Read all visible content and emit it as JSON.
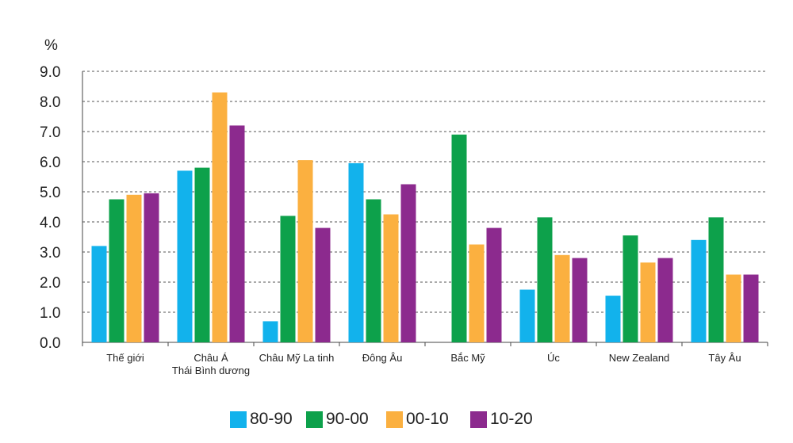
{
  "chart_data": {
    "type": "bar",
    "ylabel": "%",
    "ylim": [
      0,
      9
    ],
    "yticks": [
      "0.0",
      "1.0",
      "2.0",
      "3.0",
      "4.0",
      "5.0",
      "6.0",
      "7.0",
      "8.0",
      "9.0"
    ],
    "grid": "horizontal-dashed",
    "legend_position": "bottom",
    "categories": [
      [
        "Thế giới"
      ],
      [
        "Châu Á",
        "Thái Bình dương"
      ],
      [
        "Châu Mỹ La tinh"
      ],
      [
        "Đông Âu"
      ],
      [
        "Bắc Mỹ"
      ],
      [
        "Úc"
      ],
      [
        "New Zealand"
      ],
      [
        "Tây Âu"
      ]
    ],
    "series": [
      {
        "name": "80-90",
        "color": "#12b2ec",
        "values": [
          3.2,
          5.7,
          0.7,
          5.95,
          null,
          1.75,
          1.55,
          3.4
        ]
      },
      {
        "name": "90-00",
        "color": "#0da14b",
        "values": [
          4.75,
          5.8,
          4.2,
          4.75,
          6.9,
          4.15,
          3.55,
          4.15
        ]
      },
      {
        "name": "00-10",
        "color": "#fbb040",
        "values": [
          4.9,
          8.3,
          6.05,
          4.25,
          3.25,
          2.9,
          2.65,
          2.25
        ]
      },
      {
        "name": "10-20",
        "color": "#8c2a8e",
        "values": [
          4.95,
          7.2,
          3.8,
          5.25,
          3.8,
          2.8,
          2.8,
          2.25
        ]
      }
    ]
  }
}
